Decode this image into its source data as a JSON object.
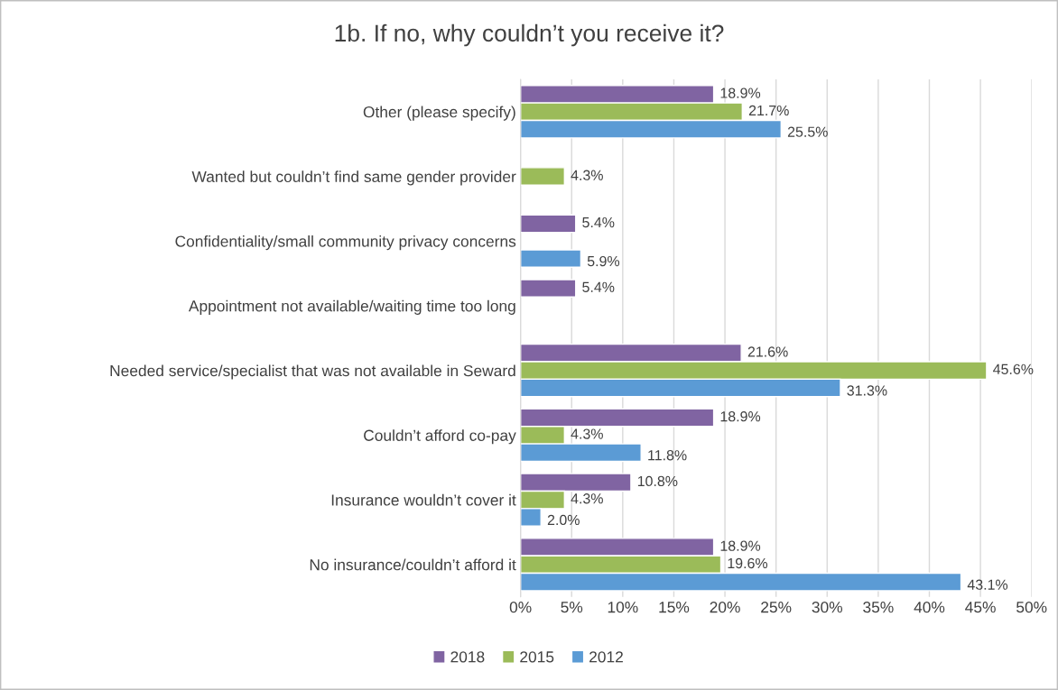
{
  "chart_data": {
    "type": "bar",
    "orientation": "horizontal",
    "title": "1b. If no, why couldn’t you receive it?",
    "categories": [
      "Other (please specify)",
      "Wanted but couldn’t find same gender provider",
      "Confidentiality/small community privacy concerns",
      "Appointment not available/waiting time too long",
      "Needed service/specialist that was not available in Seward",
      "Couldn’t afford co-pay",
      "Insurance wouldn’t cover it",
      "No insurance/couldn’t afford it"
    ],
    "series": [
      {
        "name": "2018",
        "color": "#8064a2",
        "values": [
          18.9,
          null,
          5.4,
          5.4,
          21.6,
          18.9,
          10.8,
          18.9
        ],
        "value_labels": [
          "18.9%",
          null,
          "5.4%",
          "5.4%",
          "21.6%",
          "18.9%",
          "10.8%",
          "18.9%"
        ]
      },
      {
        "name": "2015",
        "color": "#9bbb59",
        "values": [
          21.7,
          4.3,
          null,
          null,
          45.6,
          4.3,
          4.3,
          19.6
        ],
        "value_labels": [
          "21.7%",
          "4.3%",
          null,
          null,
          "45.6%",
          "4.3%",
          "4.3%",
          "19.6%"
        ]
      },
      {
        "name": "2012",
        "color": "#5b9bd5",
        "values": [
          25.5,
          null,
          5.9,
          null,
          31.3,
          11.8,
          2.0,
          43.1
        ],
        "value_labels": [
          "25.5%",
          null,
          "5.9%",
          null,
          "31.3%",
          "11.8%",
          "2.0%",
          "43.1%"
        ]
      }
    ],
    "xlim": [
      0,
      50
    ],
    "xticks": [
      {
        "value": 0,
        "label": "0%"
      },
      {
        "value": 5,
        "label": "5%"
      },
      {
        "value": 10,
        "label": "10%"
      },
      {
        "value": 15,
        "label": "15%"
      },
      {
        "value": 20,
        "label": "20%"
      },
      {
        "value": 25,
        "label": "25%"
      },
      {
        "value": 30,
        "label": "30%"
      },
      {
        "value": 35,
        "label": "35%"
      },
      {
        "value": 40,
        "label": "40%"
      },
      {
        "value": 45,
        "label": "45%"
      },
      {
        "value": 50,
        "label": "50%"
      }
    ],
    "grid": "x",
    "legend": "bottom"
  }
}
